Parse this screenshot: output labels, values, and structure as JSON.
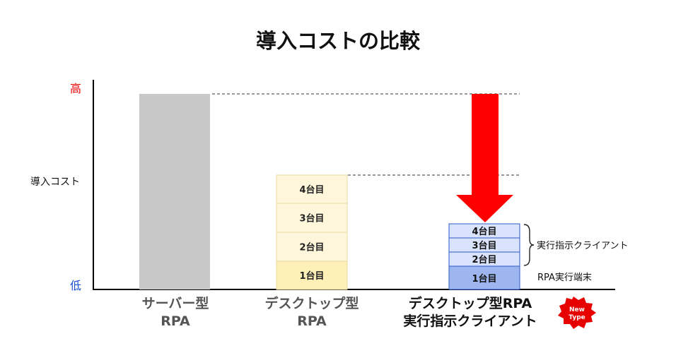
{
  "chart_data": {
    "type": "bar",
    "title": "導入コストの比較",
    "ylabel": "導入コスト",
    "y_ticks": {
      "high": "高",
      "low": "低"
    },
    "colors": {
      "high": "#e60000",
      "low": "#1a4fd6",
      "server": "#c8c8c8",
      "desktop_top": "#fff7dc",
      "desktop_bottom": "#fff0b8",
      "desktop_border": "#e8d9a0",
      "client_fill": "#d9e3fb",
      "client_base": "#9db6ef",
      "client_border": "#2e59c6",
      "arrow": "#ff0000",
      "badge": "#e60000"
    },
    "categories": [
      {
        "lines": [
          "サーバー型",
          "RPA"
        ]
      },
      {
        "lines": [
          "デスクトップ型",
          "RPA"
        ]
      },
      {
        "lines": [
          "デスクトップ型RPA",
          "実行指示クライアント"
        ]
      }
    ],
    "desktop_units": [
      "1台目",
      "2台目",
      "3台目",
      "4台目"
    ],
    "client_base_label": "1台目",
    "client_units": [
      "2台目",
      "3台目",
      "4台目"
    ],
    "annotations": {
      "brace": "実行指示クライアント",
      "base": "RPA実行端末"
    },
    "badge": {
      "line1": "New",
      "line2": "Type"
    }
  }
}
